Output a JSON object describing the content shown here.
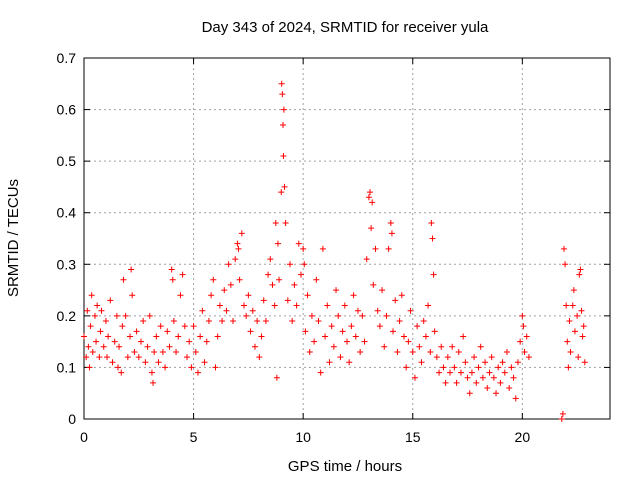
{
  "chart_data": {
    "type": "scatter",
    "title": "Day 343 of 2024, SRMTID for receiver yula",
    "xlabel": "GPS time / hours",
    "ylabel": "SRMTID / TECUs",
    "xlim": [
      0,
      24
    ],
    "ylim": [
      0,
      0.7
    ],
    "xticks": [
      0,
      5,
      10,
      15,
      20
    ],
    "xtick_labels": [
      "0",
      "5",
      "10",
      "15",
      "20"
    ],
    "yticks": [
      0,
      0.1,
      0.2,
      0.3,
      0.4,
      0.5,
      0.6,
      0.7
    ],
    "ytick_labels": [
      "0",
      "0.1",
      "0.2",
      "0.3",
      "0.4",
      "0.5",
      "0.6",
      "0.7"
    ],
    "grid": true,
    "marker": "+",
    "marker_color": "#ff0000",
    "series": [
      {
        "name": "SRMTID",
        "points": [
          [
            0.0,
            0.16
          ],
          [
            0.1,
            0.12
          ],
          [
            0.15,
            0.21
          ],
          [
            0.2,
            0.14
          ],
          [
            0.25,
            0.1
          ],
          [
            0.3,
            0.18
          ],
          [
            0.35,
            0.24
          ],
          [
            0.4,
            0.13
          ],
          [
            0.5,
            0.2
          ],
          [
            0.55,
            0.15
          ],
          [
            0.6,
            0.22
          ],
          [
            0.7,
            0.12
          ],
          [
            0.75,
            0.17
          ],
          [
            0.8,
            0.21
          ],
          [
            0.9,
            0.14
          ],
          [
            1.0,
            0.19
          ],
          [
            1.05,
            0.12
          ],
          [
            1.1,
            0.16
          ],
          [
            1.2,
            0.23
          ],
          [
            1.3,
            0.11
          ],
          [
            1.4,
            0.15
          ],
          [
            1.5,
            0.2
          ],
          [
            1.55,
            0.1
          ],
          [
            1.6,
            0.14
          ],
          [
            1.7,
            0.09
          ],
          [
            1.75,
            0.18
          ],
          [
            1.8,
            0.27
          ],
          [
            1.9,
            0.2
          ],
          [
            2.0,
            0.12
          ],
          [
            2.1,
            0.16
          ],
          [
            2.15,
            0.29
          ],
          [
            2.2,
            0.24
          ],
          [
            2.3,
            0.13
          ],
          [
            2.4,
            0.17
          ],
          [
            2.5,
            0.12
          ],
          [
            2.6,
            0.15
          ],
          [
            2.7,
            0.19
          ],
          [
            2.8,
            0.11
          ],
          [
            2.9,
            0.14
          ],
          [
            3.0,
            0.2
          ],
          [
            3.1,
            0.09
          ],
          [
            3.15,
            0.07
          ],
          [
            3.2,
            0.13
          ],
          [
            3.3,
            0.16
          ],
          [
            3.4,
            0.11
          ],
          [
            3.5,
            0.18
          ],
          [
            3.6,
            0.13
          ],
          [
            3.7,
            0.1
          ],
          [
            3.8,
            0.17
          ],
          [
            3.9,
            0.14
          ],
          [
            4.0,
            0.29
          ],
          [
            4.05,
            0.27
          ],
          [
            4.1,
            0.19
          ],
          [
            4.2,
            0.13
          ],
          [
            4.3,
            0.16
          ],
          [
            4.4,
            0.24
          ],
          [
            4.5,
            0.28
          ],
          [
            4.6,
            0.18
          ],
          [
            4.7,
            0.12
          ],
          [
            4.8,
            0.15
          ],
          [
            4.9,
            0.1
          ],
          [
            5.0,
            0.18
          ],
          [
            5.1,
            0.13
          ],
          [
            5.2,
            0.09
          ],
          [
            5.3,
            0.16
          ],
          [
            5.4,
            0.21
          ],
          [
            5.5,
            0.11
          ],
          [
            5.6,
            0.15
          ],
          [
            5.7,
            0.19
          ],
          [
            5.8,
            0.24
          ],
          [
            5.9,
            0.27
          ],
          [
            6.0,
            0.1
          ],
          [
            6.1,
            0.16
          ],
          [
            6.2,
            0.22
          ],
          [
            6.3,
            0.19
          ],
          [
            6.4,
            0.25
          ],
          [
            6.5,
            0.21
          ],
          [
            6.6,
            0.3
          ],
          [
            6.7,
            0.26
          ],
          [
            6.8,
            0.19
          ],
          [
            6.9,
            0.31
          ],
          [
            7.0,
            0.34
          ],
          [
            7.05,
            0.33
          ],
          [
            7.1,
            0.27
          ],
          [
            7.2,
            0.36
          ],
          [
            7.3,
            0.22
          ],
          [
            7.4,
            0.2
          ],
          [
            7.5,
            0.24
          ],
          [
            7.6,
            0.17
          ],
          [
            7.7,
            0.21
          ],
          [
            7.8,
            0.14
          ],
          [
            7.9,
            0.19
          ],
          [
            8.0,
            0.12
          ],
          [
            8.1,
            0.16
          ],
          [
            8.2,
            0.23
          ],
          [
            8.3,
            0.19
          ],
          [
            8.4,
            0.28
          ],
          [
            8.5,
            0.31
          ],
          [
            8.6,
            0.26
          ],
          [
            8.7,
            0.22
          ],
          [
            8.75,
            0.38
          ],
          [
            8.8,
            0.08
          ],
          [
            8.85,
            0.34
          ],
          [
            8.9,
            0.27
          ],
          [
            9.0,
            0.44
          ],
          [
            9.02,
            0.65
          ],
          [
            9.05,
            0.63
          ],
          [
            9.08,
            0.57
          ],
          [
            9.1,
            0.51
          ],
          [
            9.12,
            0.6
          ],
          [
            9.15,
            0.45
          ],
          [
            9.2,
            0.38
          ],
          [
            9.3,
            0.23
          ],
          [
            9.4,
            0.3
          ],
          [
            9.5,
            0.19
          ],
          [
            9.6,
            0.26
          ],
          [
            9.7,
            0.22
          ],
          [
            9.8,
            0.34
          ],
          [
            9.9,
            0.28
          ],
          [
            10.0,
            0.33
          ],
          [
            10.05,
            0.3
          ],
          [
            10.1,
            0.17
          ],
          [
            10.2,
            0.24
          ],
          [
            10.3,
            0.13
          ],
          [
            10.4,
            0.2
          ],
          [
            10.5,
            0.15
          ],
          [
            10.6,
            0.27
          ],
          [
            10.7,
            0.19
          ],
          [
            10.8,
            0.09
          ],
          [
            10.9,
            0.33
          ],
          [
            11.0,
            0.16
          ],
          [
            11.1,
            0.22
          ],
          [
            11.2,
            0.11
          ],
          [
            11.3,
            0.18
          ],
          [
            11.4,
            0.14
          ],
          [
            11.5,
            0.25
          ],
          [
            11.6,
            0.2
          ],
          [
            11.7,
            0.12
          ],
          [
            11.8,
            0.17
          ],
          [
            11.9,
            0.22
          ],
          [
            12.0,
            0.15
          ],
          [
            12.1,
            0.11
          ],
          [
            12.2,
            0.18
          ],
          [
            12.3,
            0.24
          ],
          [
            12.4,
            0.16
          ],
          [
            12.5,
            0.21
          ],
          [
            12.6,
            0.13
          ],
          [
            12.7,
            0.2
          ],
          [
            12.8,
            0.15
          ],
          [
            12.9,
            0.31
          ],
          [
            13.0,
            0.43
          ],
          [
            13.05,
            0.44
          ],
          [
            13.1,
            0.37
          ],
          [
            13.15,
            0.42
          ],
          [
            13.2,
            0.26
          ],
          [
            13.3,
            0.33
          ],
          [
            13.4,
            0.21
          ],
          [
            13.5,
            0.18
          ],
          [
            13.6,
            0.25
          ],
          [
            13.7,
            0.14
          ],
          [
            13.8,
            0.2
          ],
          [
            13.9,
            0.33
          ],
          [
            14.0,
            0.38
          ],
          [
            14.05,
            0.36
          ],
          [
            14.1,
            0.17
          ],
          [
            14.2,
            0.23
          ],
          [
            14.3,
            0.13
          ],
          [
            14.4,
            0.19
          ],
          [
            14.5,
            0.24
          ],
          [
            14.6,
            0.16
          ],
          [
            14.7,
            0.1
          ],
          [
            14.8,
            0.15
          ],
          [
            14.9,
            0.21
          ],
          [
            15.0,
            0.13
          ],
          [
            15.1,
            0.08
          ],
          [
            15.2,
            0.18
          ],
          [
            15.3,
            0.14
          ],
          [
            15.4,
            0.11
          ],
          [
            15.5,
            0.19
          ],
          [
            15.6,
            0.16
          ],
          [
            15.7,
            0.22
          ],
          [
            15.8,
            0.13
          ],
          [
            15.85,
            0.38
          ],
          [
            15.9,
            0.35
          ],
          [
            15.95,
            0.28
          ],
          [
            16.0,
            0.17
          ],
          [
            16.1,
            0.12
          ],
          [
            16.2,
            0.09
          ],
          [
            16.3,
            0.14
          ],
          [
            16.4,
            0.1
          ],
          [
            16.5,
            0.07
          ],
          [
            16.6,
            0.12
          ],
          [
            16.7,
            0.09
          ],
          [
            16.8,
            0.14
          ],
          [
            16.9,
            0.1
          ],
          [
            17.0,
            0.07
          ],
          [
            17.1,
            0.13
          ],
          [
            17.2,
            0.09
          ],
          [
            17.3,
            0.16
          ],
          [
            17.4,
            0.11
          ],
          [
            17.5,
            0.08
          ],
          [
            17.6,
            0.05
          ],
          [
            17.7,
            0.09
          ],
          [
            17.8,
            0.12
          ],
          [
            17.9,
            0.07
          ],
          [
            18.0,
            0.1
          ],
          [
            18.1,
            0.14
          ],
          [
            18.2,
            0.08
          ],
          [
            18.3,
            0.11
          ],
          [
            18.4,
            0.06
          ],
          [
            18.5,
            0.09
          ],
          [
            18.6,
            0.12
          ],
          [
            18.7,
            0.08
          ],
          [
            18.8,
            0.05
          ],
          [
            18.9,
            0.1
          ],
          [
            19.0,
            0.07
          ],
          [
            19.1,
            0.11
          ],
          [
            19.2,
            0.09
          ],
          [
            19.3,
            0.13
          ],
          [
            19.4,
            0.06
          ],
          [
            19.5,
            0.1
          ],
          [
            19.6,
            0.08
          ],
          [
            19.7,
            0.04
          ],
          [
            19.8,
            0.11
          ],
          [
            19.9,
            0.15
          ],
          [
            20.0,
            0.2
          ],
          [
            20.05,
            0.18
          ],
          [
            20.1,
            0.13
          ],
          [
            20.2,
            0.16
          ],
          [
            20.3,
            0.12
          ],
          [
            21.8,
            0.0
          ],
          [
            21.85,
            0.01
          ],
          [
            21.9,
            0.33
          ],
          [
            21.95,
            0.3
          ],
          [
            22.0,
            0.22
          ],
          [
            22.05,
            0.15
          ],
          [
            22.1,
            0.1
          ],
          [
            22.15,
            0.19
          ],
          [
            22.2,
            0.13
          ],
          [
            22.3,
            0.22
          ],
          [
            22.35,
            0.25
          ],
          [
            22.4,
            0.17
          ],
          [
            22.5,
            0.2
          ],
          [
            22.55,
            0.12
          ],
          [
            22.6,
            0.28
          ],
          [
            22.65,
            0.29
          ],
          [
            22.7,
            0.21
          ],
          [
            22.75,
            0.16
          ],
          [
            22.8,
            0.18
          ],
          [
            22.85,
            0.11
          ]
        ]
      }
    ]
  }
}
